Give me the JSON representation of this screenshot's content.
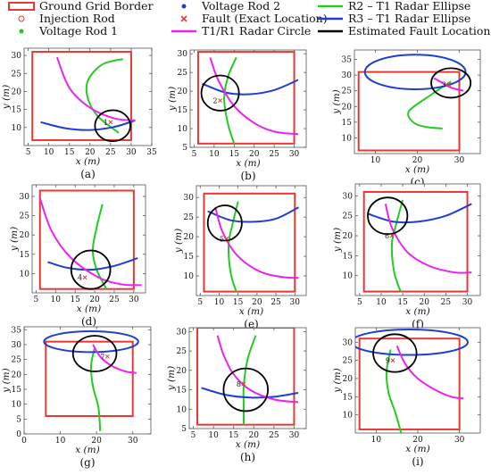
{
  "figure": {
    "legend": [
      {
        "label": "Ground Grid Border",
        "marker": "rect",
        "color": "#e53935"
      },
      {
        "label": "Voltage Rod 2",
        "marker": "dot",
        "color": "#1e40d0"
      },
      {
        "label": "R2 – T1 Radar Ellipse",
        "marker": "line",
        "color": "#22cc22"
      },
      {
        "label": "Injection Rod",
        "marker": "ring",
        "color": "#e53935"
      },
      {
        "label": "Fault (Exact Location)",
        "marker": "cross",
        "color": "#e53935"
      },
      {
        "label": "R3 – T1 Radar Ellipse",
        "marker": "line",
        "color": "#1e40d0"
      },
      {
        "label": "Voltage Rod 1",
        "marker": "dot",
        "color": "#22cc22"
      },
      {
        "label": "T1/R1 Radar Circle",
        "marker": "line",
        "color": "#ee22ee"
      },
      {
        "label": "Estimated Fault Location",
        "marker": "line",
        "color": "#000000"
      }
    ],
    "colors": {
      "border": "#e53935",
      "green": "#22cc22",
      "blue": "#1e40d0",
      "magenta": "#ee22ee",
      "circle": "#000000"
    }
  },
  "chart_data": [
    {
      "type": "line",
      "caption": "(a)",
      "xlabel": "x (m)",
      "ylabel": "y (m)",
      "xlim": [
        4,
        35
      ],
      "ylim": [
        5,
        32
      ],
      "xticks": [
        5,
        10,
        15,
        20,
        25,
        30,
        35
      ],
      "yticks": [
        10,
        15,
        20,
        25,
        30
      ],
      "fault_label": "1",
      "border": [
        6,
        6.5,
        30,
        31
      ],
      "green": [
        [
          28,
          29
        ],
        [
          23,
          27.5
        ],
        [
          19.5,
          23
        ],
        [
          19.5,
          18
        ],
        [
          22,
          13
        ],
        [
          27,
          8.5
        ]
      ],
      "blue": [
        [
          8,
          11.5
        ],
        [
          14,
          9.8
        ],
        [
          20,
          9.3
        ],
        [
          26,
          10.2
        ],
        [
          31,
          12
        ]
      ],
      "magenta": [
        [
          12,
          29.5
        ],
        [
          15,
          21
        ],
        [
          20,
          15.5
        ],
        [
          26,
          12.5
        ],
        [
          31,
          12
        ]
      ],
      "circle": {
        "cx": 25.5,
        "cy": 10.5,
        "r": 4.3
      },
      "fault": [
        25,
        11.5
      ]
    },
    {
      "type": "line",
      "caption": "(b)",
      "xlabel": "x (m)",
      "ylabel": "y (m)",
      "xlim": [
        4,
        33
      ],
      "ylim": [
        5,
        31
      ],
      "xticks": [
        5,
        10,
        15,
        20,
        25,
        30
      ],
      "yticks": [
        5,
        10,
        15,
        20,
        25,
        30
      ],
      "fault_label": "2",
      "border": [
        6,
        6,
        30,
        30.5
      ],
      "green": [
        [
          15.5,
          29
        ],
        [
          13.5,
          24
        ],
        [
          12.5,
          18
        ],
        [
          13.5,
          11
        ],
        [
          15,
          6
        ]
      ],
      "blue": [
        [
          7,
          22
        ],
        [
          13,
          19.6
        ],
        [
          19,
          19.2
        ],
        [
          25,
          20.3
        ],
        [
          31,
          23
        ]
      ],
      "magenta": [
        [
          9,
          29
        ],
        [
          11,
          23
        ],
        [
          15,
          16
        ],
        [
          20,
          11.5
        ],
        [
          25,
          9.2
        ],
        [
          31,
          8.5
        ]
      ],
      "circle": {
        "cx": 11.5,
        "cy": 19.5,
        "r": 4.7
      },
      "fault": [
        11.5,
        17.5
      ]
    },
    {
      "type": "line",
      "caption": "(c)",
      "xlabel": "x (m)",
      "ylabel": "y (m)",
      "xlim": [
        5,
        35
      ],
      "ylim": [
        5,
        38
      ],
      "xticks": [
        10,
        20,
        30
      ],
      "yticks": [
        10,
        15,
        20,
        25,
        30,
        35
      ],
      "fault_label": "3",
      "border": [
        6,
        6,
        30,
        31
      ],
      "green": [
        [
          28,
          28
        ],
        [
          23,
          23.5
        ],
        [
          18,
          18.5
        ],
        [
          19,
          15
        ],
        [
          22,
          13.5
        ],
        [
          26,
          13
        ]
      ],
      "blue": {
        "cx": 19.5,
        "cy": 31,
        "rx": 12,
        "ry": 5.5
      },
      "magenta": [
        [
          24,
          29
        ],
        [
          26,
          27.5
        ],
        [
          28,
          26
        ],
        [
          31,
          25
        ]
      ],
      "circle": {
        "cx": 28,
        "cy": 27.5,
        "r": 4.7
      },
      "fault": [
        27.5,
        27
      ]
    },
    {
      "type": "line",
      "caption": "(d)",
      "xlabel": "x (m)",
      "ylabel": "y (m)",
      "xlim": [
        4,
        33
      ],
      "ylim": [
        5,
        33
      ],
      "xticks": [
        5,
        10,
        15,
        20,
        25,
        30
      ],
      "yticks": [
        10,
        15,
        20,
        25,
        30
      ],
      "fault_label": "4",
      "border": [
        6,
        6,
        30,
        31.5
      ],
      "green": [
        [
          22,
          28
        ],
        [
          20.5,
          22
        ],
        [
          19.5,
          16
        ],
        [
          20.5,
          11
        ],
        [
          23,
          6
        ]
      ],
      "blue": [
        [
          8,
          13
        ],
        [
          13,
          11.5
        ],
        [
          19,
          11
        ],
        [
          25,
          12
        ],
        [
          31,
          14
        ]
      ],
      "magenta": [
        [
          6,
          29.5
        ],
        [
          9,
          21
        ],
        [
          14,
          14
        ],
        [
          21,
          9
        ],
        [
          27,
          7.2
        ],
        [
          32,
          7
        ]
      ],
      "circle": {
        "cx": 19,
        "cy": 11,
        "r": 5
      },
      "fault": [
        17.5,
        9
      ]
    },
    {
      "type": "line",
      "caption": "(e)",
      "xlabel": "x (m)",
      "ylabel": "y (m)",
      "xlim": [
        4,
        33
      ],
      "ylim": [
        5,
        33
      ],
      "xticks": [
        5,
        10,
        15,
        20,
        25,
        30
      ],
      "yticks": [
        10,
        15,
        20,
        25,
        30
      ],
      "fault_label": "5",
      "border": [
        6,
        6,
        30,
        31
      ],
      "green": [
        [
          15,
          29
        ],
        [
          13.5,
          23
        ],
        [
          12.5,
          18
        ],
        [
          13,
          11
        ],
        [
          14.5,
          6
        ]
      ],
      "blue": [
        [
          7,
          26.5
        ],
        [
          13,
          24.2
        ],
        [
          19,
          23.8
        ],
        [
          25,
          24.6
        ],
        [
          31,
          27.5
        ]
      ],
      "magenta": [
        [
          9,
          27.5
        ],
        [
          11,
          21
        ],
        [
          15,
          15
        ],
        [
          21,
          11
        ],
        [
          27,
          9.7
        ],
        [
          31,
          9.5
        ]
      ],
      "circle": {
        "cx": 11.5,
        "cy": 23.5,
        "r": 4.5
      },
      "fault": [
        12,
        19.5
      ]
    },
    {
      "type": "line",
      "caption": "(f)",
      "xlabel": "x (m)",
      "ylabel": "y (m)",
      "xlim": [
        4,
        33
      ],
      "ylim": [
        5,
        33
      ],
      "xticks": [
        5,
        10,
        15,
        20,
        25,
        30
      ],
      "yticks": [
        10,
        15,
        20,
        25,
        30
      ],
      "fault_label": "6",
      "border": [
        6,
        6,
        30,
        31
      ],
      "green": [
        [
          15,
          29
        ],
        [
          13.5,
          23
        ],
        [
          12.5,
          18
        ],
        [
          13,
          11
        ],
        [
          14.5,
          6
        ]
      ],
      "blue": [
        [
          7,
          25.5
        ],
        [
          13,
          23.5
        ],
        [
          19,
          23.6
        ],
        [
          25,
          25
        ],
        [
          31,
          28
        ]
      ],
      "magenta": [
        [
          11,
          28
        ],
        [
          12.5,
          22
        ],
        [
          16,
          16
        ],
        [
          21,
          12.5
        ],
        [
          27,
          10.8
        ],
        [
          31,
          10.8
        ]
      ],
      "circle": {
        "cx": 11.5,
        "cy": 25,
        "r": 4.6
      },
      "fault": [
        12.5,
        20
      ]
    },
    {
      "type": "line",
      "caption": "(g)",
      "xlabel": "x (m)",
      "ylabel": "y (m)",
      "xlim": [
        0,
        35
      ],
      "ylim": [
        0,
        36
      ],
      "xticks": [
        0,
        10,
        20,
        30
      ],
      "yticks": [
        0,
        5,
        10,
        15,
        20,
        25,
        30,
        35
      ],
      "fault_label": "7",
      "border": [
        6,
        6,
        30,
        31
      ],
      "green": [
        [
          19.5,
          29
        ],
        [
          18.5,
          23
        ],
        [
          19,
          16
        ],
        [
          20.5,
          9
        ],
        [
          21,
          1
        ]
      ],
      "blue": {
        "cx": 18.5,
        "cy": 31,
        "rx": 13,
        "ry": 3.5
      },
      "magenta": [
        [
          19,
          30
        ],
        [
          21,
          26
        ],
        [
          24,
          23
        ],
        [
          28,
          21
        ],
        [
          31,
          20.5
        ]
      ],
      "circle": {
        "cx": 19.5,
        "cy": 27,
        "r": 6
      },
      "fault": [
        23,
        26
      ]
    },
    {
      "type": "line",
      "caption": "(h)",
      "xlabel": "x (m)",
      "ylabel": "y (m)",
      "xlim": [
        4,
        33
      ],
      "ylim": [
        5,
        31
      ],
      "xticks": [
        5,
        10,
        15,
        20,
        25,
        30
      ],
      "yticks": [
        5,
        10,
        15,
        20,
        25,
        30
      ],
      "fault_label": "8",
      "border": [
        6,
        6,
        30,
        31
      ],
      "green": [
        [
          20.5,
          29
        ],
        [
          18.5,
          23
        ],
        [
          17.5,
          16
        ],
        [
          17.5,
          11
        ],
        [
          17.5,
          6
        ]
      ],
      "blue": [
        [
          7,
          15.5
        ],
        [
          13,
          13.7
        ],
        [
          19,
          13
        ],
        [
          25,
          13.2
        ],
        [
          31,
          14.2
        ]
      ],
      "magenta": [
        [
          11,
          29
        ],
        [
          12.5,
          24
        ],
        [
          15,
          19
        ],
        [
          19,
          15
        ],
        [
          25,
          12.5
        ],
        [
          31,
          11.8
        ]
      ],
      "circle": {
        "cx": 18,
        "cy": 15,
        "r": 5.5
      },
      "fault": [
        17.5,
        16.5
      ]
    },
    {
      "type": "line",
      "caption": "(i)",
      "xlabel": "x (m)",
      "ylabel": "y (m)",
      "xlim": [
        5,
        35
      ],
      "ylim": [
        5,
        34
      ],
      "xticks": [
        10,
        20,
        30
      ],
      "yticks": [
        10,
        15,
        20,
        25,
        30
      ],
      "fault_label": "9",
      "border": [
        6,
        6,
        30,
        31
      ],
      "green": [
        [
          13.5,
          28
        ],
        [
          12.5,
          22
        ],
        [
          13,
          16
        ],
        [
          14.5,
          11
        ],
        [
          16,
          5
        ]
      ],
      "blue": {
        "cx": 18,
        "cy": 30,
        "rx": 14,
        "ry": 3.5
      },
      "magenta": [
        [
          15,
          29
        ],
        [
          17,
          24
        ],
        [
          20,
          20
        ],
        [
          24,
          17
        ],
        [
          28,
          15
        ],
        [
          31,
          14.5
        ]
      ],
      "circle": {
        "cx": 14.5,
        "cy": 27,
        "r": 5.2
      },
      "fault": [
        14,
        25
      ]
    }
  ]
}
